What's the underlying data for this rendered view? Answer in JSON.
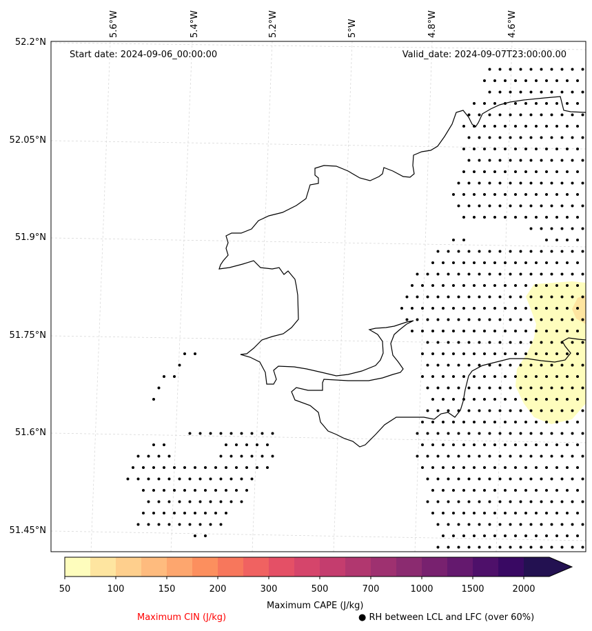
{
  "map": {
    "start_date": "Start date: 2024-09-06_00:00:00",
    "valid_date": "Valid_date: 2024-09-07T23:00:00.00",
    "lon_labels": [
      "5.6°W",
      "5.4°W",
      "5.2°W",
      "5°W",
      "4.8°W",
      "4.6°W"
    ],
    "lat_labels": [
      "52.2°N",
      "52.05°N",
      "51.9°N",
      "51.75°N",
      "51.6°N",
      "51.45°N"
    ]
  },
  "colorbar": {
    "title": "Maximum CAPE (J/kg)",
    "tick_labels": [
      "50",
      "100",
      "150",
      "200",
      "300",
      "500",
      "700",
      "1000",
      "1500",
      "2000"
    ],
    "colors": [
      "#fefdbd",
      "#fee5a0",
      "#fecf8d",
      "#febb7e",
      "#fda66e",
      "#fc8f5e",
      "#f7775c",
      "#f06261",
      "#e45066",
      "#d5456b",
      "#c43d6e",
      "#b1376f",
      "#9e3170",
      "#8b2b70",
      "#78216f",
      "#64196e",
      "#4e106a",
      "#390963",
      "#231151"
    ]
  },
  "legend": {
    "cin_label": "Maximum CIN (J/kg)",
    "rh_label": "● RH between LCL and LFC (over 60%)"
  },
  "colors": {
    "cin_text": "#ff0000",
    "cape_low": "#fefdbd",
    "cape_mid": "#fee5a0"
  }
}
